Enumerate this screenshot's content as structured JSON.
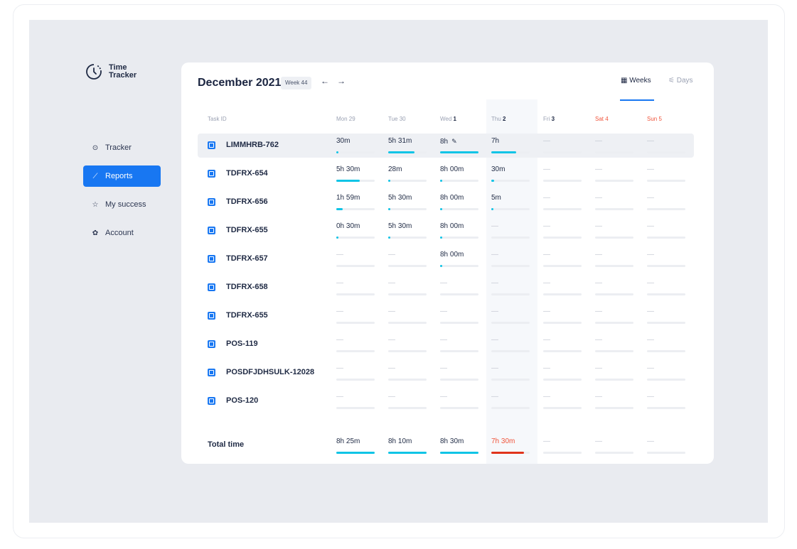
{
  "app": {
    "title_line1": "Time",
    "title_line2": "Tracker"
  },
  "nav": [
    {
      "label": "Tracker",
      "icon": "clock-check-icon",
      "glyph": "⊙",
      "active": false
    },
    {
      "label": "Reports",
      "icon": "chart-icon",
      "glyph": "⟋",
      "active": true
    },
    {
      "label": "My success",
      "icon": "star-icon",
      "glyph": "☆",
      "active": false
    },
    {
      "label": "Account",
      "icon": "gear-icon",
      "glyph": "✿",
      "active": false
    }
  ],
  "header": {
    "month": "December 2021",
    "week": "Week 44",
    "prev": "←",
    "next": "→"
  },
  "views": {
    "weeks": "Weeks",
    "days": "Days",
    "weeks_icon": "▦",
    "days_icon": "⚟"
  },
  "columns": {
    "task": "Task ID",
    "days": [
      {
        "name": "Mon",
        "num": "29",
        "bold": false,
        "weekend": false
      },
      {
        "name": "Tue",
        "num": "30",
        "bold": false,
        "weekend": false
      },
      {
        "name": "Wed",
        "num": "1",
        "bold": true,
        "weekend": false
      },
      {
        "name": "Thu",
        "num": "2",
        "bold": true,
        "weekend": false
      },
      {
        "name": "Fri",
        "num": "3",
        "bold": true,
        "weekend": false
      },
      {
        "name": "Sat",
        "num": "4",
        "bold": false,
        "weekend": true
      },
      {
        "name": "Sun",
        "num": "5",
        "bold": false,
        "weekend": true
      }
    ]
  },
  "rows": [
    {
      "task": "LIMMHRB-762",
      "cells": [
        {
          "text": "30m",
          "fill": 0.04
        },
        {
          "text": "5h 31m",
          "fill": 0.69
        },
        {
          "text": "8h",
          "fill": 1.0,
          "edit": true
        },
        {
          "text": "7h",
          "fill": 0.65
        },
        {
          "text": "—",
          "fill": 0
        },
        {
          "text": "—",
          "fill": 0
        },
        {
          "text": "—",
          "fill": 0
        }
      ]
    },
    {
      "task": "TDFRX-654",
      "cells": [
        {
          "text": "5h 30m",
          "fill": 0.62
        },
        {
          "text": "28m",
          "fill": 0.04
        },
        {
          "text": "8h 00m",
          "fill": 0.04
        },
        {
          "text": "30m",
          "fill": 0.08
        },
        {
          "text": "—",
          "fill": 0
        },
        {
          "text": "—",
          "fill": 0
        },
        {
          "text": "—",
          "fill": 0
        }
      ]
    },
    {
      "task": "TDFRX-656",
      "cells": [
        {
          "text": "1h 59m",
          "fill": 0.17
        },
        {
          "text": "5h 30m",
          "fill": 0.04
        },
        {
          "text": "8h 00m",
          "fill": 0.04
        },
        {
          "text": "5m",
          "fill": 0.04
        },
        {
          "text": "—",
          "fill": 0
        },
        {
          "text": "—",
          "fill": 0
        },
        {
          "text": "—",
          "fill": 0
        }
      ]
    },
    {
      "task": "TDFRX-655",
      "cells": [
        {
          "text": "0h 30m",
          "fill": 0.04
        },
        {
          "text": "5h 30m",
          "fill": 0.04
        },
        {
          "text": "8h 00m",
          "fill": 0.04
        },
        {
          "text": "—",
          "fill": 0
        },
        {
          "text": "—",
          "fill": 0
        },
        {
          "text": "—",
          "fill": 0
        },
        {
          "text": "—",
          "fill": 0
        }
      ]
    },
    {
      "task": "TDFRX-657",
      "cells": [
        {
          "text": "—",
          "fill": 0
        },
        {
          "text": "—",
          "fill": 0
        },
        {
          "text": "8h 00m",
          "fill": 0.04
        },
        {
          "text": "—",
          "fill": 0
        },
        {
          "text": "—",
          "fill": 0
        },
        {
          "text": "—",
          "fill": 0
        },
        {
          "text": "—",
          "fill": 0
        }
      ]
    },
    {
      "task": "TDFRX-658",
      "cells": [
        {
          "text": "—",
          "fill": 0
        },
        {
          "text": "—",
          "fill": 0
        },
        {
          "text": "—",
          "fill": 0
        },
        {
          "text": "—",
          "fill": 0
        },
        {
          "text": "—",
          "fill": 0
        },
        {
          "text": "—",
          "fill": 0
        },
        {
          "text": "—",
          "fill": 0
        }
      ]
    },
    {
      "task": "TDFRX-655",
      "cells": [
        {
          "text": "—",
          "fill": 0
        },
        {
          "text": "—",
          "fill": 0
        },
        {
          "text": "—",
          "fill": 0
        },
        {
          "text": "—",
          "fill": 0
        },
        {
          "text": "—",
          "fill": 0
        },
        {
          "text": "—",
          "fill": 0
        },
        {
          "text": "—",
          "fill": 0
        }
      ]
    },
    {
      "task": "POS-119",
      "cells": [
        {
          "text": "—",
          "fill": 0
        },
        {
          "text": "—",
          "fill": 0
        },
        {
          "text": "—",
          "fill": 0
        },
        {
          "text": "—",
          "fill": 0
        },
        {
          "text": "—",
          "fill": 0
        },
        {
          "text": "—",
          "fill": 0
        },
        {
          "text": "—",
          "fill": 0
        }
      ]
    },
    {
      "task": "POSDFJDHSULK-12028",
      "cells": [
        {
          "text": "—",
          "fill": 0
        },
        {
          "text": "—",
          "fill": 0
        },
        {
          "text": "—",
          "fill": 0
        },
        {
          "text": "—",
          "fill": 0
        },
        {
          "text": "—",
          "fill": 0
        },
        {
          "text": "—",
          "fill": 0
        },
        {
          "text": "—",
          "fill": 0
        }
      ]
    },
    {
      "task": "POS-120",
      "cells": [
        {
          "text": "—",
          "fill": 0
        },
        {
          "text": "—",
          "fill": 0
        },
        {
          "text": "—",
          "fill": 0
        },
        {
          "text": "—",
          "fill": 0
        },
        {
          "text": "—",
          "fill": 0
        },
        {
          "text": "—",
          "fill": 0
        },
        {
          "text": "—",
          "fill": 0
        }
      ]
    }
  ],
  "total": {
    "label": "Total time",
    "cells": [
      {
        "text": "8h 25m",
        "fill": 1.0,
        "over": false
      },
      {
        "text": "8h 10m",
        "fill": 1.0,
        "over": false
      },
      {
        "text": "8h 30m",
        "fill": 1.0,
        "over": false
      },
      {
        "text": "7h 30m",
        "fill": 0.85,
        "over": true
      },
      {
        "text": "—",
        "fill": 0,
        "over": false
      },
      {
        "text": "—",
        "fill": 0,
        "over": false
      },
      {
        "text": "—",
        "fill": 0,
        "over": false
      }
    ]
  },
  "colors": {
    "accent": "#1877f2",
    "bar": "#0fc4e6",
    "alert": "#f0533a"
  }
}
